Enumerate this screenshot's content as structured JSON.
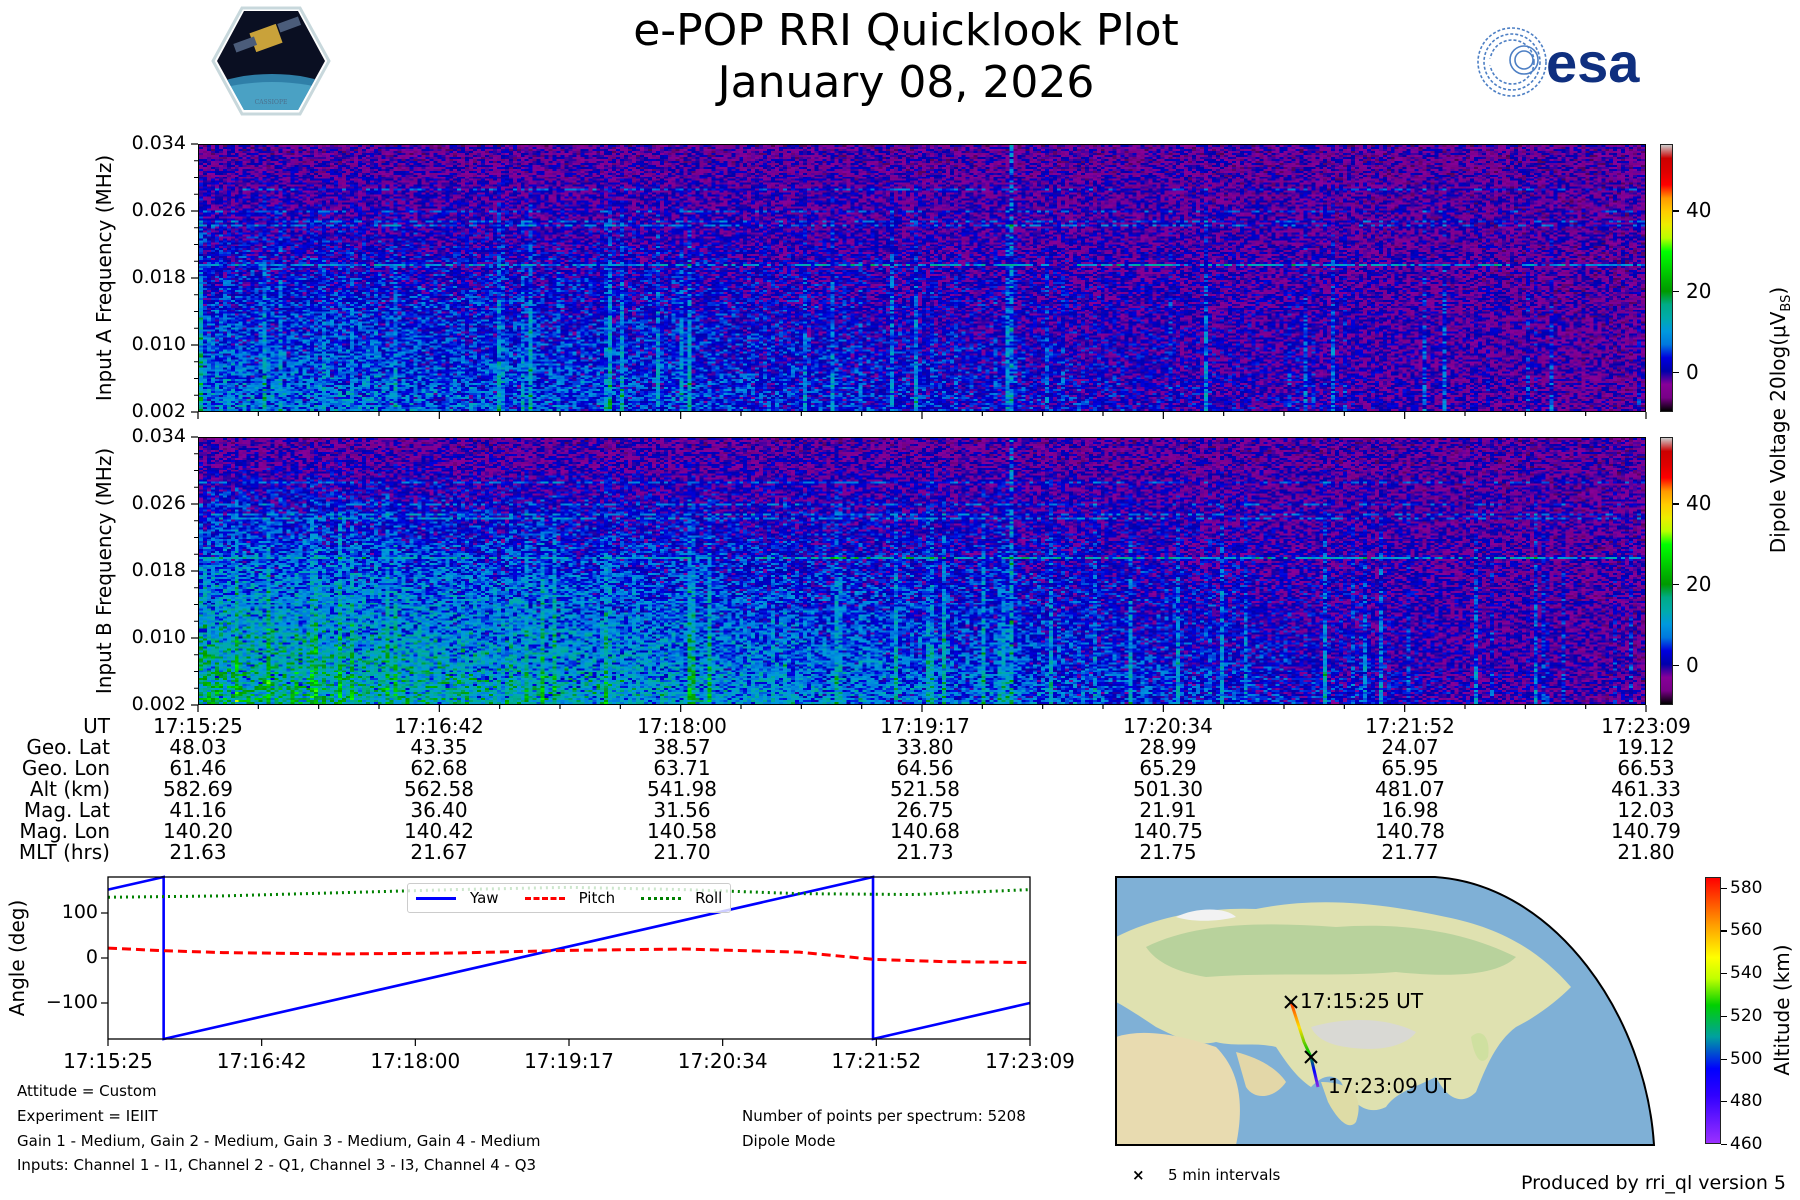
{
  "header": {
    "title": "e-POP RRI Quicklook Plot",
    "date": "January 08, 2026",
    "left_logo": "CASSIOPE",
    "right_logo": "esa"
  },
  "spectrograms": {
    "panels": [
      {
        "ylabel": "Input A Frequency (MHz)"
      },
      {
        "ylabel": "Input B Frequency (MHz)"
      }
    ],
    "freq_ticks": [
      "0.034",
      "0.026",
      "0.018",
      "0.010",
      "0.002"
    ],
    "freq_range_mhz": [
      0.002,
      0.034
    ],
    "colorbar_label": "Dipole Voltage 20log(μV",
    "colorbar_label_sub": "BS",
    "colorbar_label_end": ")",
    "colorbar_ticks": [
      "40",
      "20",
      "0"
    ],
    "colorbar_range": [
      -10,
      56.5
    ],
    "colormap": "nipy_spectral"
  },
  "ephemeris": {
    "row_labels": [
      "UT",
      "Geo. Lat",
      "Geo. Lon",
      "Alt (km)",
      "Mag. Lat",
      "Mag. Lon",
      "MLT (hrs)"
    ],
    "columns": [
      [
        "17:15:25",
        "48.03",
        "61.46",
        "582.69",
        "41.16",
        "140.20",
        "21.63"
      ],
      [
        "17:16:42",
        "43.35",
        "62.68",
        "562.58",
        "36.40",
        "140.42",
        "21.67"
      ],
      [
        "17:18:00",
        "38.57",
        "63.71",
        "541.98",
        "31.56",
        "140.58",
        "21.70"
      ],
      [
        "17:19:17",
        "33.80",
        "64.56",
        "521.58",
        "26.75",
        "140.68",
        "21.73"
      ],
      [
        "17:20:34",
        "28.99",
        "65.29",
        "501.30",
        "21.91",
        "140.75",
        "21.75"
      ],
      [
        "17:21:52",
        "24.07",
        "65.95",
        "481.07",
        "16.98",
        "140.78",
        "21.77"
      ],
      [
        "17:23:09",
        "19.12",
        "66.53",
        "461.33",
        "12.03",
        "140.79",
        "21.80"
      ]
    ]
  },
  "chart_data": {
    "type": "line",
    "title": "",
    "xlabel": "",
    "ylabel": "Angle (deg)",
    "x_unit": "seconds since 17:15:25",
    "xlim": [
      0,
      464
    ],
    "ylim": [
      -180,
      180
    ],
    "x_tick_labels": [
      "17:15:25",
      "17:16:42",
      "17:18:00",
      "17:19:17",
      "17:20:34",
      "17:21:52",
      "17:23:09"
    ],
    "y_ticks": [
      100,
      0,
      -100
    ],
    "y_tick_labels": [
      "100",
      "0",
      "−100"
    ],
    "legend": "top-center",
    "series": [
      {
        "name": "Yaw",
        "color": "#0000ff",
        "style": "solid",
        "points": [
          [
            0,
            152
          ],
          [
            28,
            180
          ],
          [
            28,
            -180
          ],
          [
            385,
            180
          ],
          [
            385,
            -180
          ],
          [
            464,
            -100
          ]
        ]
      },
      {
        "name": "Pitch",
        "color": "#ff0000",
        "style": "dashed",
        "points": [
          [
            0,
            22
          ],
          [
            29,
            16
          ],
          [
            58,
            12
          ],
          [
            116,
            9
          ],
          [
            174,
            11
          ],
          [
            232,
            17
          ],
          [
            290,
            20
          ],
          [
            348,
            13
          ],
          [
            385,
            -3
          ],
          [
            420,
            -8
          ],
          [
            464,
            -10
          ]
        ]
      },
      {
        "name": "Roll",
        "color": "#008000",
        "style": "dotted",
        "points": [
          [
            0,
            135
          ],
          [
            58,
            138
          ],
          [
            116,
            145
          ],
          [
            174,
            152
          ],
          [
            232,
            157
          ],
          [
            290,
            152
          ],
          [
            348,
            143
          ],
          [
            406,
            141
          ],
          [
            464,
            152
          ]
        ]
      }
    ]
  },
  "info": {
    "attitude": "Attitude = Custom",
    "experiment": "Experiment = IEIIT",
    "gains": "Gain 1 - Medium, Gain 2 - Medium, Gain 3 - Medium, Gain 4 - Medium",
    "inputs": "Inputs: Channel 1 - I1, Channel 2 - Q1, Channel 3 - I3, Channel 4 - Q3",
    "points": "Number of points per spectrum: 5208",
    "mode": "Dipole Mode"
  },
  "map": {
    "start_label": "17:15:25 UT",
    "end_label": "17:23:09 UT",
    "legend_marker": "×",
    "legend_label": "5 min intervals",
    "colorbar_label": "Altitude (km)",
    "colorbar_ticks": [
      "580",
      "560",
      "540",
      "520",
      "500",
      "480",
      "460"
    ],
    "colorbar_range": [
      460,
      585
    ]
  },
  "footer": {
    "produced_by": "Produced by rri_ql version 5"
  }
}
